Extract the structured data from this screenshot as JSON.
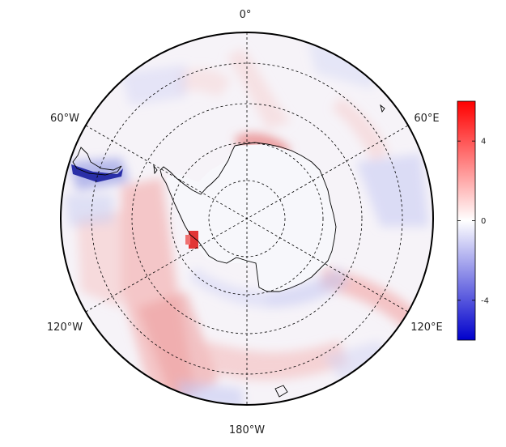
{
  "map": {
    "projection": "south-polar-stereographic",
    "longitude_labels": {
      "top": "0°",
      "upper_left": "60°W",
      "upper_right": "60°E",
      "lower_left": "120°W",
      "lower_right": "120°E",
      "bottom": "180°W"
    },
    "graticule": {
      "lines": "dashed",
      "meridian_step_deg": 30
    }
  },
  "colorbar": {
    "colormap": "blue-white-red",
    "colors": {
      "low": "#0000cc",
      "mid": "#ffffff",
      "high": "#ff0000"
    },
    "range": [
      -6,
      6
    ],
    "ticks": [
      4,
      0,
      -4
    ],
    "tick_labels": [
      "4",
      "0",
      "-4"
    ]
  }
}
